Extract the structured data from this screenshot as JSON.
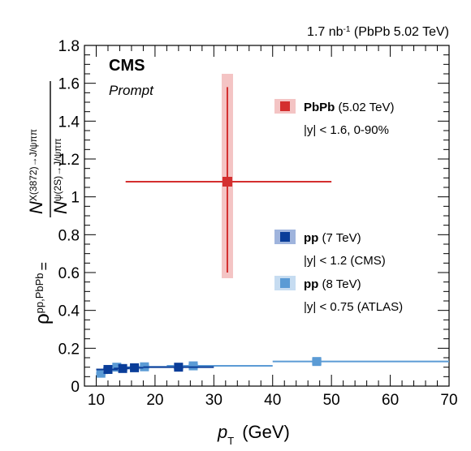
{
  "luminosity_note": "1.7 nb",
  "luminosity_sup": "-1",
  "luminosity_rest": " (PbPb 5.02 TeV)",
  "experiment": "CMS",
  "tag": "Prompt",
  "colors": {
    "pbpb": "#d42f2f",
    "pbpb_sys": "#f4c4c4",
    "pp7": "#0a3d99",
    "pp7_sys": "#9fb4dd",
    "pp8": "#5b9bd5",
    "pp8_sys": "#c6dcf1"
  },
  "chart_data": {
    "type": "scatter",
    "xlabel": "p",
    "xlabel_sub": "T",
    "xlabel_unit": "(GeV)",
    "ylabel_rho": "ρ",
    "ylabel_rho_sup": "pp,PbPb",
    "ylabel_eq": "=",
    "ylabel_num": "N",
    "ylabel_num_sup": "X(3872)→J/ψππ",
    "ylabel_den": "N",
    "ylabel_den_sup": "ψ(2S)→J/ψππ",
    "xlim": [
      8,
      70
    ],
    "ylim": [
      0,
      1.8
    ],
    "xticks": [
      10,
      20,
      30,
      40,
      50,
      60,
      70
    ],
    "yticks": [
      0,
      0.2,
      0.4,
      0.6,
      0.8,
      1,
      1.2,
      1.4,
      1.6,
      1.8
    ],
    "ytick_labels": [
      "0",
      "0.2",
      "0.4",
      "0.6",
      "0.8",
      "1",
      "1.2",
      "1.4",
      "1.6",
      "1.8"
    ],
    "legend": [
      {
        "key": "pbpb",
        "bold": "PbPb",
        "rest": " (5.02 TeV)",
        "note": "|y| < 1.6, 0-90%"
      },
      {
        "key": "pp7",
        "bold": "pp",
        "rest": " (7 TeV)",
        "note": "|y| < 1.2 (CMS)"
      },
      {
        "key": "pp8",
        "bold": "pp",
        "rest": " (8 TeV)",
        "note": "|y| < 0.75 (ATLAS)"
      }
    ],
    "series": [
      {
        "key": "pbpb",
        "points": [
          {
            "x": 32.3,
            "xlo": 15,
            "xhi": 50,
            "y": 1.08,
            "ylo": 0.6,
            "yhi": 1.58,
            "syslo": 0.57,
            "syshi": 1.65
          }
        ]
      },
      {
        "key": "pp7",
        "points": [
          {
            "x": 12,
            "xlo": 10,
            "xhi": 14,
            "y": 0.088,
            "ylo": 0.078,
            "yhi": 0.098,
            "syslo": 0.076,
            "syshi": 0.1
          },
          {
            "x": 14.5,
            "xlo": 13,
            "xhi": 16,
            "y": 0.093,
            "ylo": 0.083,
            "yhi": 0.103,
            "syslo": 0.081,
            "syshi": 0.105
          },
          {
            "x": 16.5,
            "xlo": 15,
            "xhi": 18,
            "y": 0.097,
            "ylo": 0.087,
            "yhi": 0.107,
            "syslo": 0.085,
            "syshi": 0.109
          },
          {
            "x": 24,
            "xlo": 18,
            "xhi": 30,
            "y": 0.1,
            "ylo": 0.09,
            "yhi": 0.11,
            "syslo": 0.088,
            "syshi": 0.112
          }
        ]
      },
      {
        "key": "pp8",
        "points": [
          {
            "x": 10.8,
            "xlo": 10,
            "xhi": 12,
            "y": 0.068,
            "ylo": 0.058,
            "yhi": 0.078,
            "syslo": 0.056,
            "syshi": 0.08
          },
          {
            "x": 13.5,
            "xlo": 12,
            "xhi": 16,
            "y": 0.1,
            "ylo": 0.09,
            "yhi": 0.11,
            "syslo": 0.088,
            "syshi": 0.112
          },
          {
            "x": 18.2,
            "xlo": 16,
            "xhi": 22,
            "y": 0.102,
            "ylo": 0.092,
            "yhi": 0.112,
            "syslo": 0.09,
            "syshi": 0.114
          },
          {
            "x": 26.5,
            "xlo": 22,
            "xhi": 40,
            "y": 0.107,
            "ylo": 0.097,
            "yhi": 0.117,
            "syslo": 0.095,
            "syshi": 0.119
          },
          {
            "x": 47.5,
            "xlo": 40,
            "xhi": 70,
            "y": 0.13,
            "ylo": 0.115,
            "yhi": 0.145,
            "syslo": 0.112,
            "syshi": 0.148
          }
        ]
      }
    ]
  }
}
